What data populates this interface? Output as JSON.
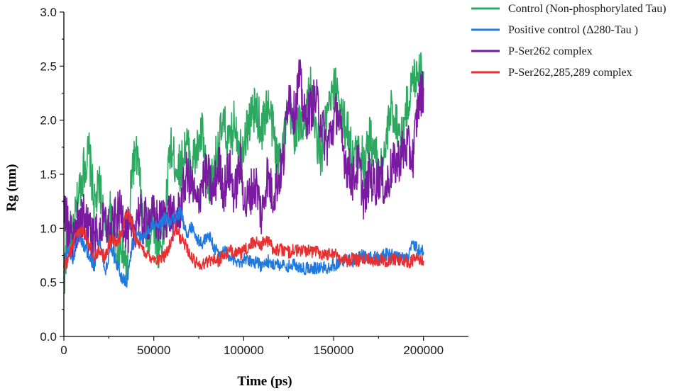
{
  "chart_data": {
    "type": "line",
    "title": "",
    "xlabel": "Time (ps)",
    "ylabel": "Rg (nm)",
    "xlim": [
      0,
      225000
    ],
    "ylim": [
      0,
      3.0
    ],
    "xticks": [
      0,
      50000,
      100000,
      150000,
      200000
    ],
    "xtick_labels": [
      "0",
      "50000",
      "100000",
      "150000",
      "200000"
    ],
    "yticks": [
      0.0,
      0.5,
      1.0,
      1.5,
      2.0,
      2.5,
      3.0
    ],
    "ytick_labels": [
      "0.0",
      "0.5",
      "1.0",
      "1.5",
      "2.0",
      "2.5",
      "3.0"
    ],
    "grid": false,
    "legend_position": "top-right",
    "series": [
      {
        "name": "Control (Non-phosphorylated Tau)",
        "color": "#2ca860",
        "x": [
          0,
          2000,
          5000,
          8000,
          11000,
          14000,
          17000,
          20000,
          23000,
          26000,
          29000,
          32000,
          35000,
          38000,
          41000,
          44000,
          47000,
          50000,
          53000,
          56000,
          59000,
          62000,
          65000,
          68000,
          71000,
          74000,
          77000,
          80000,
          83000,
          86000,
          89000,
          92000,
          95000,
          98000,
          101000,
          104000,
          107000,
          110000,
          113000,
          116000,
          119000,
          122000,
          125000,
          128000,
          131000,
          134000,
          137000,
          140000,
          143000,
          146000,
          149000,
          152000,
          155000,
          158000,
          161000,
          164000,
          167000,
          170000,
          173000,
          176000,
          179000,
          182000,
          185000,
          188000,
          191000,
          194000,
          197000,
          200000
        ],
        "y": [
          0.45,
          1.0,
          0.9,
          1.3,
          1.55,
          1.7,
          1.2,
          1.4,
          0.95,
          1.15,
          0.75,
          0.9,
          0.6,
          1.6,
          1.65,
          1.05,
          0.95,
          1.05,
          0.8,
          1.0,
          1.75,
          1.6,
          1.55,
          1.8,
          1.6,
          1.7,
          1.9,
          1.3,
          1.5,
          1.8,
          1.95,
          1.75,
          2.0,
          1.75,
          1.85,
          2.05,
          2.1,
          1.9,
          2.15,
          1.95,
          1.6,
          1.85,
          2.05,
          1.9,
          1.95,
          2.0,
          2.3,
          1.9,
          1.65,
          2.0,
          2.2,
          2.35,
          2.0,
          1.9,
          1.6,
          1.75,
          1.6,
          1.85,
          1.7,
          1.5,
          1.75,
          2.1,
          2.0,
          1.8,
          2.15,
          2.35,
          2.5,
          2.45
        ]
      },
      {
        "name": "Positive control (Δ280-Tau )",
        "color": "#1f7ae0",
        "x": [
          0,
          2000,
          5000,
          8000,
          11000,
          14000,
          17000,
          20000,
          23000,
          26000,
          29000,
          32000,
          35000,
          38000,
          41000,
          44000,
          47000,
          50000,
          53000,
          56000,
          59000,
          62000,
          65000,
          68000,
          71000,
          74000,
          77000,
          80000,
          83000,
          86000,
          89000,
          92000,
          95000,
          98000,
          101000,
          104000,
          107000,
          110000,
          113000,
          116000,
          119000,
          122000,
          125000,
          128000,
          131000,
          134000,
          137000,
          140000,
          143000,
          146000,
          149000,
          152000,
          155000,
          158000,
          161000,
          164000,
          167000,
          170000,
          173000,
          176000,
          179000,
          182000,
          185000,
          188000,
          191000,
          194000,
          197000,
          200000
        ],
        "y": [
          0.65,
          0.8,
          0.7,
          0.95,
          0.85,
          0.75,
          0.65,
          0.9,
          0.6,
          0.85,
          0.7,
          0.55,
          0.5,
          0.85,
          0.95,
          0.9,
          1.0,
          1.05,
          1.0,
          1.1,
          1.05,
          1.1,
          1.15,
          0.95,
          1.0,
          0.9,
          0.85,
          0.95,
          0.85,
          0.75,
          0.8,
          0.75,
          0.7,
          0.68,
          0.72,
          0.7,
          0.68,
          0.65,
          0.7,
          0.68,
          0.66,
          0.68,
          0.65,
          0.66,
          0.64,
          0.63,
          0.65,
          0.63,
          0.64,
          0.63,
          0.66,
          0.67,
          0.7,
          0.72,
          0.7,
          0.73,
          0.75,
          0.72,
          0.74,
          0.73,
          0.76,
          0.75,
          0.73,
          0.72,
          0.74,
          0.85,
          0.8,
          0.78
        ]
      },
      {
        "name": "P-Ser262 complex",
        "color": "#7a1aa0",
        "x": [
          0,
          2000,
          5000,
          8000,
          11000,
          14000,
          17000,
          20000,
          23000,
          26000,
          29000,
          32000,
          35000,
          38000,
          41000,
          44000,
          47000,
          50000,
          53000,
          56000,
          59000,
          62000,
          65000,
          68000,
          71000,
          74000,
          77000,
          80000,
          83000,
          86000,
          89000,
          92000,
          95000,
          98000,
          101000,
          104000,
          107000,
          110000,
          113000,
          116000,
          119000,
          122000,
          125000,
          128000,
          131000,
          134000,
          137000,
          140000,
          143000,
          146000,
          149000,
          152000,
          155000,
          158000,
          161000,
          164000,
          167000,
          170000,
          173000,
          176000,
          179000,
          182000,
          185000,
          188000,
          191000,
          194000,
          197000,
          200000
        ],
        "y": [
          1.3,
          1.0,
          0.85,
          1.05,
          1.1,
          0.95,
          0.9,
          1.0,
          1.05,
          0.95,
          1.1,
          1.15,
          1.0,
          0.9,
          1.15,
          1.05,
          1.1,
          1.1,
          1.05,
          1.1,
          1.15,
          1.05,
          1.2,
          1.5,
          1.4,
          1.2,
          1.45,
          1.5,
          1.3,
          1.6,
          1.35,
          1.55,
          1.3,
          1.6,
          1.2,
          1.35,
          1.4,
          1.1,
          1.5,
          1.3,
          1.45,
          1.6,
          2.3,
          2.05,
          2.4,
          2.0,
          2.1,
          2.2,
          2.0,
          1.75,
          1.9,
          2.1,
          1.75,
          1.55,
          1.45,
          1.6,
          1.25,
          1.5,
          1.4,
          1.5,
          1.35,
          1.55,
          1.6,
          1.7,
          1.75,
          1.65,
          2.15,
          2.3
        ]
      },
      {
        "name": "P-Ser262,285,289 complex",
        "color": "#e83030",
        "x": [
          0,
          2000,
          5000,
          8000,
          11000,
          14000,
          17000,
          20000,
          23000,
          26000,
          29000,
          32000,
          35000,
          38000,
          41000,
          44000,
          47000,
          50000,
          53000,
          56000,
          59000,
          62000,
          65000,
          68000,
          71000,
          74000,
          77000,
          80000,
          83000,
          86000,
          89000,
          92000,
          95000,
          98000,
          101000,
          104000,
          107000,
          110000,
          113000,
          116000,
          119000,
          122000,
          125000,
          128000,
          131000,
          134000,
          137000,
          140000,
          143000,
          146000,
          149000,
          152000,
          155000,
          158000,
          161000,
          164000,
          167000,
          170000,
          173000,
          176000,
          179000,
          182000,
          185000,
          188000,
          191000,
          194000,
          197000,
          200000
        ],
        "y": [
          0.65,
          0.7,
          0.85,
          0.95,
          1.0,
          0.85,
          0.75,
          0.8,
          0.72,
          0.9,
          0.85,
          0.95,
          1.15,
          1.05,
          0.85,
          0.8,
          0.75,
          0.73,
          0.7,
          0.75,
          0.85,
          1.0,
          0.9,
          0.85,
          0.72,
          0.68,
          0.66,
          0.7,
          0.72,
          0.7,
          0.75,
          0.78,
          0.8,
          0.76,
          0.8,
          0.85,
          0.88,
          0.85,
          0.9,
          0.82,
          0.8,
          0.8,
          0.78,
          0.8,
          0.79,
          0.8,
          0.78,
          0.8,
          0.77,
          0.76,
          0.78,
          0.75,
          0.72,
          0.7,
          0.72,
          0.7,
          0.71,
          0.72,
          0.7,
          0.72,
          0.7,
          0.71,
          0.72,
          0.7,
          0.69,
          0.7,
          0.72,
          0.7
        ]
      }
    ]
  }
}
